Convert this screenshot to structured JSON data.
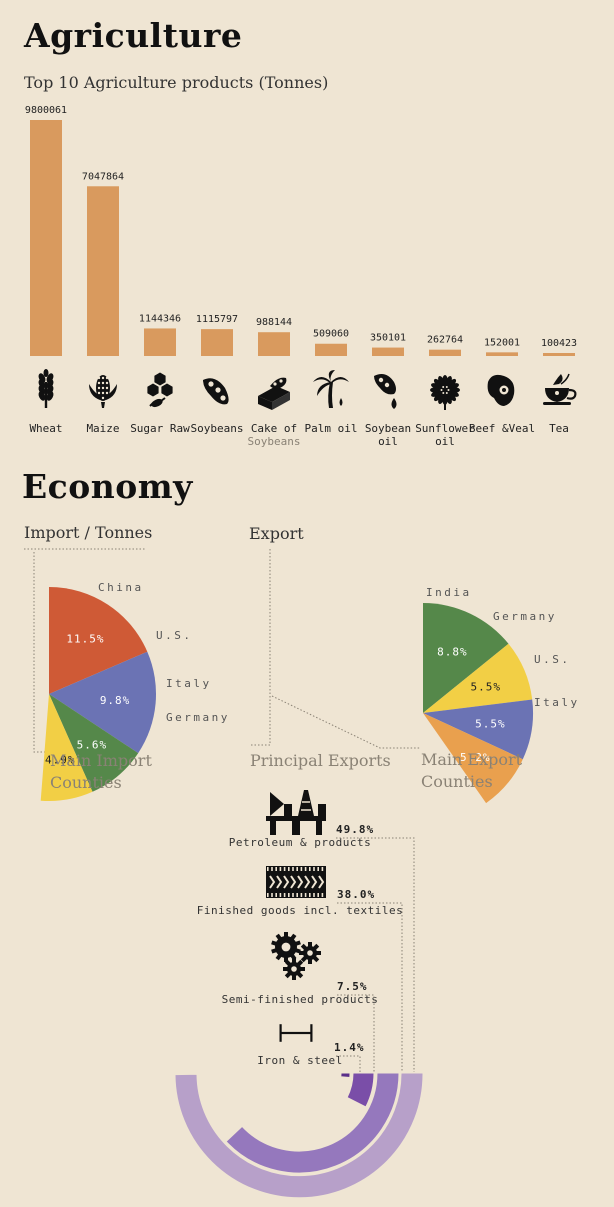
{
  "agriculture": {
    "title": "Agriculture",
    "subtitle": "Top 10 Agriculture products (Tonnes)"
  },
  "chart_data": [
    {
      "type": "bar",
      "title": "Top 10 Agriculture products (Tonnes)",
      "categories": [
        "Wheat",
        "Maize",
        "Sugar Raw",
        "Soybeans",
        "Cake of Soybeans",
        "Palm oil",
        "Soybean oil",
        "Sunflower oil",
        "Beef & Veal",
        "Tea"
      ],
      "category_label_lines": [
        [
          "Wheat"
        ],
        [
          "Maize"
        ],
        [
          "Sugar Raw"
        ],
        [
          "Soybeans"
        ],
        [
          "Cake of",
          "Soybeans"
        ],
        [
          "Palm oil"
        ],
        [
          "Soybean",
          "oil"
        ],
        [
          "Sunflower",
          "oil"
        ],
        [
          "Beef &Veal"
        ],
        [
          "Tea"
        ]
      ],
      "values": [
        9800061,
        7047864,
        1144346,
        1115797,
        988144,
        509060,
        350101,
        262764,
        152001,
        100423
      ],
      "value_labels": [
        "9800061",
        "7047864",
        "1144346",
        "1115797",
        "988144",
        "509060",
        "350101",
        "262764",
        "152001",
        "100423"
      ],
      "icons": [
        "wheat-icon",
        "corn-icon",
        "sugar-cubes-icon",
        "soybean-pod-icon",
        "soy-cake-icon",
        "palm-tree-icon",
        "oil-drop-icon",
        "sunflower-icon",
        "meat-icon",
        "tea-cup-icon"
      ],
      "ylim": [
        0,
        9800061
      ],
      "color": "#d99a5e"
    },
    {
      "type": "pie",
      "title": "Import / Tonnes",
      "caption_lines": [
        "Main Import",
        "Counties"
      ],
      "categories": [
        "China",
        "U.S.",
        "Italy",
        "Germany"
      ],
      "category_labels": [
        "China",
        "U.S.",
        "Italy",
        "Germany"
      ],
      "values": [
        11.5,
        9.8,
        5.6,
        4.9
      ],
      "value_labels": [
        "11.5%",
        "9.8%",
        "5.6%",
        "4.9%"
      ],
      "colors": [
        "#cf5a36",
        "#6b73b4",
        "#55884a",
        "#f2cf45"
      ],
      "label_colors": [
        "#ffffff",
        "#ffffff",
        "#ffffff",
        "#222222"
      ]
    },
    {
      "type": "pie",
      "title": "Export",
      "caption_lines": [
        "Main Export",
        "Counties"
      ],
      "categories": [
        "India",
        "Germany",
        "U.S.",
        "Italy"
      ],
      "category_labels": [
        "India",
        "Germany",
        "U.S.",
        "Italy"
      ],
      "values": [
        8.8,
        5.5,
        5.5,
        5.2
      ],
      "value_labels": [
        "8.8%",
        "5.5%",
        "5.5%",
        "5.2%"
      ],
      "colors": [
        "#55884a",
        "#f2cf45",
        "#6b73b4",
        "#e9a04e"
      ],
      "label_colors": [
        "#ffffff",
        "#222222",
        "#ffffff",
        "#ffffff"
      ]
    },
    {
      "type": "area",
      "title": "Principal Exports",
      "categories": [
        "Petroleum & products",
        "Finished goods incl. textiles",
        "Semi-finished products",
        "Iron & steel"
      ],
      "values": [
        49.8,
        38.0,
        7.5,
        1.4
      ],
      "value_labels": [
        "49.8%",
        "38.0%",
        "7.5%",
        "1.4%"
      ],
      "icons": [
        "oil-rig-icon",
        "textile-icon",
        "gears-icon",
        "steel-beam-icon"
      ],
      "colors": [
        "#b7a0c9",
        "#9578bd",
        "#7a4ea8",
        "#5a2f8a"
      ]
    }
  ],
  "economy": {
    "title": "Economy"
  }
}
